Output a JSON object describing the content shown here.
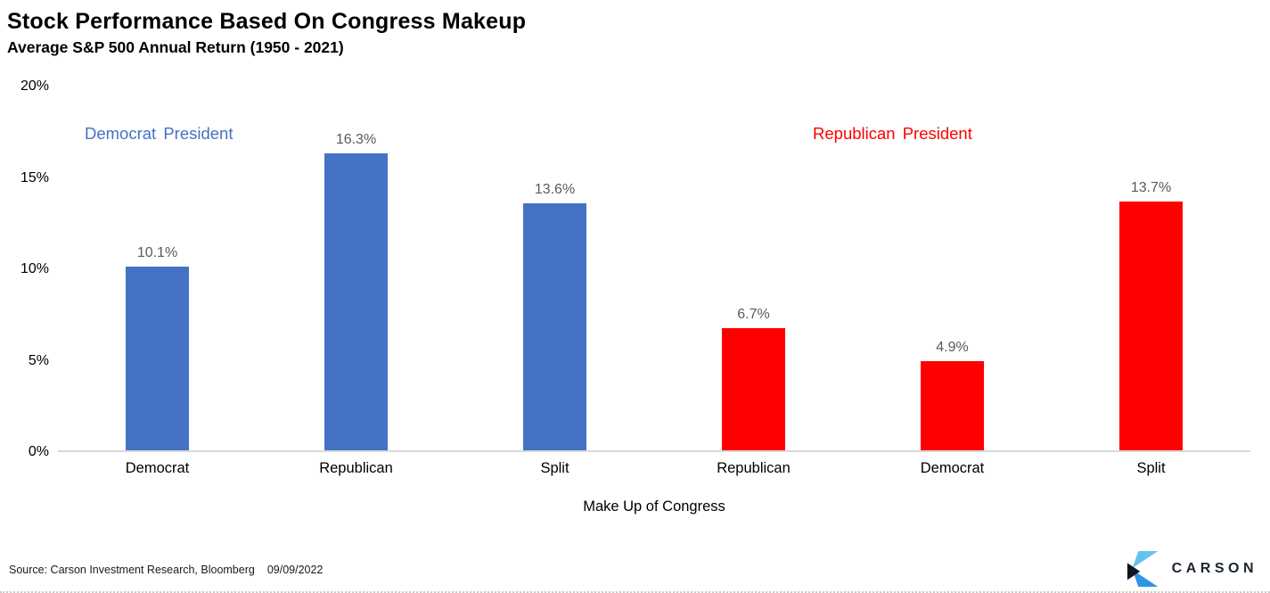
{
  "chart_data": {
    "type": "bar",
    "title": "Stock Performance Based On Congress Makeup",
    "subtitle": "Average S&P 500 Annual Return (1950 - 2021)",
    "xlabel": "Make Up of Congress",
    "ylabel": "",
    "ylim": [
      0,
      20
    ],
    "ytick_labels": [
      "0%",
      "5%",
      "10%",
      "15%",
      "20%"
    ],
    "ytick_values": [
      0,
      5,
      10,
      15,
      20
    ],
    "grid": false,
    "legend_position": "inline-annotations",
    "annotations": [
      {
        "text": "Democrat President",
        "color": "#4472C4"
      },
      {
        "text": "Republican President",
        "color": "#FF0000"
      }
    ],
    "categories": [
      "Democrat",
      "Republican",
      "Split",
      "Republican",
      "Democrat",
      "Split"
    ],
    "bars": [
      {
        "category": "Democrat",
        "value": 10.1,
        "label": "10.1%",
        "series": "Democrat President",
        "color": "#4472C4"
      },
      {
        "category": "Republican",
        "value": 16.3,
        "label": "16.3%",
        "series": "Democrat President",
        "color": "#4472C4"
      },
      {
        "category": "Split",
        "value": 13.6,
        "label": "13.6%",
        "series": "Democrat President",
        "color": "#4472C4"
      },
      {
        "category": "Republican",
        "value": 6.7,
        "label": "6.7%",
        "series": "Republican President",
        "color": "#FF0000"
      },
      {
        "category": "Democrat",
        "value": 4.9,
        "label": "4.9%",
        "series": "Republican President",
        "color": "#FF0000"
      },
      {
        "category": "Split",
        "value": 13.7,
        "label": "13.7%",
        "series": "Republican President",
        "color": "#FF0000"
      }
    ]
  },
  "footer": {
    "source": "Source: Carson Investment Research, Bloomberg",
    "date": "09/09/2022",
    "logo_text": "CARSON"
  },
  "colors": {
    "bar_democrat_president": "#4472C4",
    "bar_republican_president": "#FF0000",
    "value_label": "#595959",
    "axis_line": "#D9D9D9",
    "logo_light_blue": "#63C3EF",
    "logo_blue": "#2D96E4",
    "logo_black": "#10151C"
  }
}
